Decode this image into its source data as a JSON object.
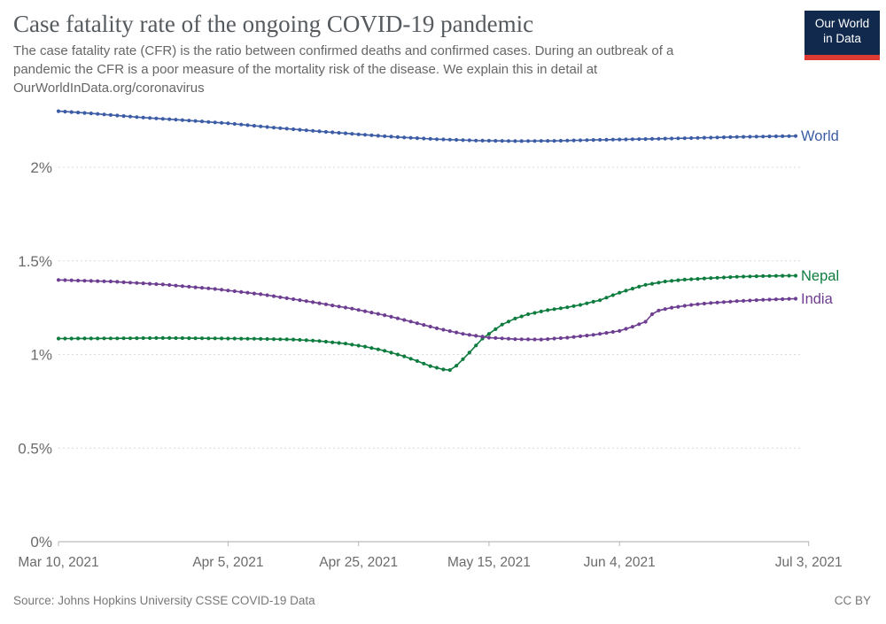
{
  "header": {
    "title": "Case fatality rate of the ongoing COVID-19 pandemic",
    "subtitle": "The case fatality rate (CFR) is the ratio between confirmed deaths and confirmed cases. During an outbreak of a\npandemic the CFR is a poor measure of the mortality risk of the disease. We explain this in detail at\nOurWorldInData.org/coronavirus",
    "logo": {
      "line1": "Our World",
      "line2": "in Data",
      "bg_color": "#12294e",
      "stripe_color": "#dc3a32"
    }
  },
  "footer": {
    "source": "Source: Johns Hopkins University CSSE COVID-19 Data",
    "license": "CC BY"
  },
  "chart_data": {
    "type": "line",
    "title": "Case fatality rate of the ongoing COVID-19 pandemic",
    "unit": "%",
    "grid": "dashed-horizontal",
    "legend_position": "line-end-labels-right",
    "marker": "circle-daily",
    "x_axis": {
      "start_date": "Mar 10, 2021",
      "end_date": "Jul 3, 2021",
      "range_days": [
        0,
        115
      ],
      "tick_labels": [
        "Mar 10, 2021",
        "Apr 5, 2021",
        "Apr 25, 2021",
        "May 15, 2021",
        "Jun 4, 2021",
        "Jul 3, 2021"
      ],
      "tick_days": [
        0,
        26,
        46,
        66,
        86,
        115
      ]
    },
    "y_axis": {
      "tick_labels": [
        "0%",
        "0.5%",
        "1%",
        "1.5%",
        "2%"
      ],
      "tick_values": [
        0,
        0.5,
        1,
        1.5,
        2
      ],
      "ylim": [
        0,
        2.35
      ]
    },
    "series": [
      {
        "name": "World",
        "color": "#3c5da6",
        "last_day": 113,
        "keyframes": [
          [
            0,
            2.3
          ],
          [
            5,
            2.288
          ],
          [
            12,
            2.268
          ],
          [
            19,
            2.252
          ],
          [
            26,
            2.235
          ],
          [
            33,
            2.212
          ],
          [
            40,
            2.192
          ],
          [
            46,
            2.176
          ],
          [
            52,
            2.161
          ],
          [
            58,
            2.15
          ],
          [
            64,
            2.143
          ],
          [
            70,
            2.14
          ],
          [
            76,
            2.141
          ],
          [
            82,
            2.146
          ],
          [
            90,
            2.151
          ],
          [
            97,
            2.156
          ],
          [
            104,
            2.162
          ],
          [
            113,
            2.167
          ]
        ]
      },
      {
        "name": "Nepal",
        "color": "#0e7c3f",
        "last_day": 113,
        "keyframes": [
          [
            0,
            1.085
          ],
          [
            8,
            1.086
          ],
          [
            16,
            1.088
          ],
          [
            24,
            1.086
          ],
          [
            30,
            1.084
          ],
          [
            36,
            1.08
          ],
          [
            40,
            1.072
          ],
          [
            44,
            1.058
          ],
          [
            47,
            1.042
          ],
          [
            50,
            1.02
          ],
          [
            53,
            0.99
          ],
          [
            55,
            0.965
          ],
          [
            57,
            0.938
          ],
          [
            59,
            0.92
          ],
          [
            60,
            0.917
          ],
          [
            61,
            0.94
          ],
          [
            62,
            0.975
          ],
          [
            63,
            1.01
          ],
          [
            64,
            1.048
          ],
          [
            65,
            1.085
          ],
          [
            66,
            1.11
          ],
          [
            68,
            1.16
          ],
          [
            70,
            1.192
          ],
          [
            72,
            1.215
          ],
          [
            75,
            1.237
          ],
          [
            78,
            1.252
          ],
          [
            80,
            1.265
          ],
          [
            83,
            1.29
          ],
          [
            86,
            1.33
          ],
          [
            88,
            1.352
          ],
          [
            90,
            1.372
          ],
          [
            93,
            1.39
          ],
          [
            96,
            1.4
          ],
          [
            100,
            1.408
          ],
          [
            104,
            1.415
          ],
          [
            108,
            1.419
          ],
          [
            113,
            1.421
          ]
        ]
      },
      {
        "name": "India",
        "color": "#6d3e91",
        "last_day": 113,
        "keyframes": [
          [
            0,
            1.398
          ],
          [
            8,
            1.39
          ],
          [
            16,
            1.374
          ],
          [
            24,
            1.35
          ],
          [
            31,
            1.322
          ],
          [
            38,
            1.285
          ],
          [
            45,
            1.245
          ],
          [
            50,
            1.21
          ],
          [
            54,
            1.176
          ],
          [
            58,
            1.14
          ],
          [
            62,
            1.11
          ],
          [
            66,
            1.09
          ],
          [
            70,
            1.082
          ],
          [
            74,
            1.08
          ],
          [
            78,
            1.09
          ],
          [
            82,
            1.105
          ],
          [
            86,
            1.126
          ],
          [
            88,
            1.148
          ],
          [
            90,
            1.175
          ],
          [
            91,
            1.215
          ],
          [
            92,
            1.235
          ],
          [
            94,
            1.25
          ],
          [
            97,
            1.265
          ],
          [
            100,
            1.275
          ],
          [
            104,
            1.285
          ],
          [
            108,
            1.292
          ],
          [
            113,
            1.298
          ]
        ]
      }
    ]
  }
}
